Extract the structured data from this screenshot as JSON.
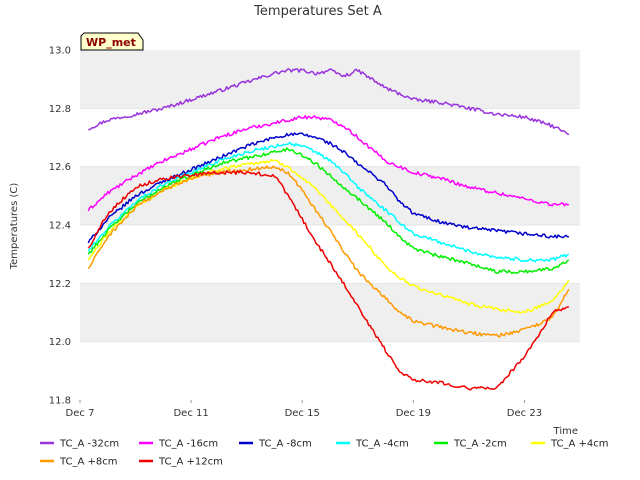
{
  "chart_data": {
    "type": "line",
    "title": "Temperatures Set A",
    "xlabel": "Time",
    "ylabel": "Temperatures (C)",
    "badge": "WP_met",
    "xlim": [
      0,
      18
    ],
    "ylim": [
      11.8,
      13.0
    ],
    "grid": "horizontal bands",
    "legend_position": "bottom",
    "x_ticks": [
      {
        "x": 0,
        "label": "Dec 7"
      },
      {
        "x": 4,
        "label": "Dec 11"
      },
      {
        "x": 8,
        "label": "Dec 15"
      },
      {
        "x": 12,
        "label": "Dec 19"
      },
      {
        "x": 16,
        "label": "Dec 23"
      }
    ],
    "y_ticks": [
      {
        "y": 11.8,
        "label": "11.8"
      },
      {
        "y": 12.0,
        "label": "12.0"
      },
      {
        "y": 12.2,
        "label": "12.2"
      },
      {
        "y": 12.4,
        "label": "12.4"
      },
      {
        "y": 12.6,
        "label": "12.6"
      },
      {
        "y": 12.8,
        "label": "12.8"
      },
      {
        "y": 13.0,
        "label": "13.0"
      }
    ],
    "series": [
      {
        "name": "TC_A -32cm",
        "color": "#9933dd",
        "x": [
          0.3,
          1,
          2,
          3,
          4,
          5,
          6,
          7,
          7.5,
          8,
          8.5,
          9,
          9.5,
          10,
          11,
          11.5,
          12,
          13,
          14,
          15,
          16,
          17,
          17.6
        ],
        "y": [
          12.73,
          12.76,
          12.78,
          12.8,
          12.83,
          12.86,
          12.89,
          12.92,
          12.93,
          12.93,
          12.92,
          12.93,
          12.91,
          12.93,
          12.87,
          12.85,
          12.83,
          12.82,
          12.8,
          12.78,
          12.77,
          12.74,
          12.71
        ]
      },
      {
        "name": "TC_A -16cm",
        "color": "#ff00ff",
        "x": [
          0.3,
          1,
          2,
          3,
          4,
          5,
          6,
          7,
          7.5,
          8,
          8.5,
          9,
          9.5,
          10,
          11,
          11.5,
          12,
          13,
          14,
          15,
          16,
          17,
          17.6
        ],
        "y": [
          12.45,
          12.51,
          12.57,
          12.62,
          12.66,
          12.7,
          12.73,
          12.75,
          12.76,
          12.77,
          12.77,
          12.76,
          12.74,
          12.7,
          12.62,
          12.6,
          12.58,
          12.56,
          12.53,
          12.51,
          12.49,
          12.47,
          12.47
        ]
      },
      {
        "name": "TC_A -8cm",
        "color": "#0000cc",
        "x": [
          0.3,
          1,
          2,
          3,
          4,
          5,
          6,
          7,
          7.5,
          8,
          8.5,
          9,
          9.5,
          10,
          11,
          11.5,
          12,
          13,
          14,
          15,
          16,
          17,
          17.6
        ],
        "y": [
          12.34,
          12.42,
          12.5,
          12.55,
          12.59,
          12.63,
          12.67,
          12.7,
          12.71,
          12.71,
          12.7,
          12.68,
          12.65,
          12.61,
          12.54,
          12.48,
          12.44,
          12.41,
          12.39,
          12.38,
          12.37,
          12.36,
          12.36
        ]
      },
      {
        "name": "TC_A -4cm",
        "color": "#00ffff",
        "x": [
          0.3,
          1,
          2,
          3,
          4,
          5,
          6,
          7,
          7.5,
          8,
          8.5,
          9,
          9.5,
          10,
          11,
          11.5,
          12,
          13,
          14,
          15,
          16,
          17,
          17.6
        ],
        "y": [
          12.31,
          12.39,
          12.48,
          12.54,
          12.58,
          12.62,
          12.65,
          12.67,
          12.68,
          12.67,
          12.65,
          12.62,
          12.58,
          12.53,
          12.45,
          12.41,
          12.37,
          12.34,
          12.31,
          12.29,
          12.28,
          12.28,
          12.3
        ]
      },
      {
        "name": "TC_A -2cm",
        "color": "#00ee00",
        "x": [
          0.3,
          1,
          2,
          3,
          4,
          5,
          6,
          7,
          7.5,
          8,
          8.5,
          9,
          9.5,
          10,
          11,
          11.5,
          12,
          13,
          14,
          15,
          16,
          17,
          17.6
        ],
        "y": [
          12.3,
          12.38,
          12.47,
          12.53,
          12.57,
          12.61,
          12.63,
          12.65,
          12.66,
          12.64,
          12.61,
          12.57,
          12.53,
          12.49,
          12.41,
          12.36,
          12.32,
          12.29,
          12.27,
          12.24,
          12.24,
          12.25,
          12.28
        ]
      },
      {
        "name": "TC_A +4cm",
        "color": "#ffff00",
        "x": [
          0.3,
          1,
          2,
          3,
          4,
          5,
          6,
          7,
          7.5,
          8,
          8.5,
          9,
          9.5,
          10,
          11,
          11.5,
          12,
          13,
          14,
          15,
          16,
          17,
          17.6
        ],
        "y": [
          12.28,
          12.37,
          12.46,
          12.52,
          12.56,
          12.59,
          12.61,
          12.62,
          12.6,
          12.56,
          12.52,
          12.47,
          12.42,
          12.37,
          12.26,
          12.22,
          12.19,
          12.16,
          12.13,
          12.11,
          12.1,
          12.14,
          12.21
        ]
      },
      {
        "name": "TC_A +8cm",
        "color": "#ff9900",
        "x": [
          0.3,
          1,
          2,
          3,
          4,
          5,
          6,
          7,
          7.5,
          8,
          8.5,
          9,
          9.5,
          10,
          11,
          11.5,
          12,
          13,
          14,
          15,
          16,
          17,
          17.6
        ],
        "y": [
          12.25,
          12.36,
          12.46,
          12.52,
          12.56,
          12.58,
          12.59,
          12.6,
          12.58,
          12.52,
          12.45,
          12.38,
          12.31,
          12.24,
          12.15,
          12.1,
          12.07,
          12.05,
          12.03,
          12.02,
          12.04,
          12.08,
          12.18
        ]
      },
      {
        "name": "TC_A +12cm",
        "color": "#ee0000",
        "x": [
          0.3,
          1,
          2,
          3,
          4,
          5,
          6,
          7,
          7.5,
          8,
          8.5,
          9,
          9.5,
          10,
          11,
          11.5,
          12,
          13,
          14,
          15,
          16,
          16.5,
          17,
          17.6
        ],
        "y": [
          12.32,
          12.44,
          12.53,
          12.56,
          12.57,
          12.58,
          12.58,
          12.57,
          12.5,
          12.42,
          12.34,
          12.27,
          12.2,
          12.12,
          11.97,
          11.9,
          11.87,
          11.86,
          11.84,
          11.84,
          11.95,
          12.02,
          12.1,
          12.12
        ]
      }
    ]
  }
}
